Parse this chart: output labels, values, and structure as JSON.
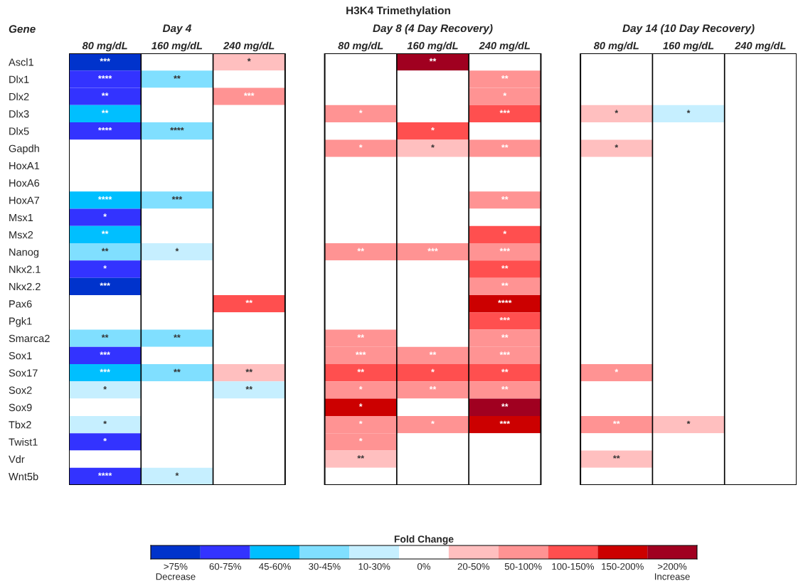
{
  "chart_data": {
    "type": "heatmap",
    "title": "H3K4 Trimethylation",
    "ylabel": "Gene",
    "clabel": "Fold Change",
    "annotations": [
      "Day 4",
      "Day 8 (4 Day Recovery)",
      "Day 14 (10 Day Recovery)"
    ],
    "categories": [
      "80 mg/dL",
      "160 mg/dL",
      "240 mg/dL",
      "80 mg/dL",
      "160 mg/dL",
      "240 mg/dL",
      "80 mg/dL",
      "160 mg/dL",
      "240 mg/dL"
    ],
    "y_categories": [
      "Ascl1",
      "Dlx1",
      "Dlx2",
      "Dlx3",
      "Dlx5",
      "Gapdh",
      "HoxA1",
      "HoxA6",
      "HoxA7",
      "Msx1",
      "Msx2",
      "Nanog",
      "Nkx2.1",
      "Nkx2.2",
      "Pax6",
      "Pgk1",
      "Smarca2",
      "Sox1",
      "Sox17",
      "Sox2",
      "Sox9",
      "Tbx2",
      "Twist1",
      "Vdr",
      "Wnt5b"
    ],
    "colors": [
      "#0033cc",
      "#3333ff",
      "#00bfff",
      "#80dfff",
      "#c6efff",
      "#ffffff",
      "#ffbfbf",
      "#ff9393",
      "#ff4f4f",
      "#cc0000",
      "#a00020"
    ],
    "clim": [
      -5.5,
      5.5
    ],
    "cticks": [
      {
        "value": -5,
        "label": ">75%\nDecrease"
      },
      {
        "value": -4,
        "label": "60-75%"
      },
      {
        "value": -3,
        "label": "45-60%"
      },
      {
        "value": -2,
        "label": "30-45%"
      },
      {
        "value": -1,
        "label": "10-30%"
      },
      {
        "value": 0,
        "label": "0%"
      },
      {
        "value": 1,
        "label": "20-50%"
      },
      {
        "value": 2,
        "label": "50-100%"
      },
      {
        "value": 3,
        "label": "100-150%"
      },
      {
        "value": 4,
        "label": "150-200%"
      },
      {
        "value": 5,
        "label": ">200%\nIncrease"
      }
    ],
    "cells": [
      [
        -5,
        0,
        1,
        0,
        5,
        0,
        0,
        0,
        0
      ],
      [
        -4,
        -2,
        0,
        0,
        0,
        2,
        0,
        0,
        0
      ],
      [
        -4,
        0,
        2,
        0,
        0,
        2,
        0,
        0,
        0
      ],
      [
        -3,
        0,
        0,
        2,
        0,
        3,
        1,
        -1,
        0
      ],
      [
        -4,
        -2,
        0,
        0,
        3,
        0,
        0,
        0,
        0
      ],
      [
        0,
        0,
        0,
        2,
        1,
        2,
        1,
        0,
        0
      ],
      [
        0,
        0,
        0,
        0,
        0,
        0,
        0,
        0,
        0
      ],
      [
        0,
        0,
        0,
        0,
        0,
        0,
        0,
        0,
        0
      ],
      [
        -3,
        -2,
        0,
        0,
        0,
        2,
        0,
        0,
        0
      ],
      [
        -4,
        0,
        0,
        0,
        0,
        0,
        0,
        0,
        0
      ],
      [
        -3,
        0,
        0,
        0,
        0,
        3,
        0,
        0,
        0
      ],
      [
        -2,
        -1,
        0,
        2,
        2,
        2,
        0,
        0,
        0
      ],
      [
        -4,
        0,
        0,
        0,
        0,
        3,
        0,
        0,
        0
      ],
      [
        -5,
        0,
        0,
        0,
        0,
        2,
        0,
        0,
        0
      ],
      [
        0,
        0,
        3,
        0,
        0,
        4,
        0,
        0,
        0
      ],
      [
        0,
        0,
        0,
        0,
        0,
        3,
        0,
        0,
        0
      ],
      [
        -2,
        -2,
        0,
        2,
        0,
        2,
        0,
        0,
        0
      ],
      [
        -4,
        0,
        0,
        2,
        2,
        2,
        0,
        0,
        0
      ],
      [
        -3,
        -2,
        1,
        3,
        3,
        3,
        2,
        0,
        0
      ],
      [
        -1,
        0,
        -1,
        2,
        2,
        2,
        0,
        0,
        0
      ],
      [
        0,
        0,
        0,
        4,
        0,
        5,
        0,
        0,
        0
      ],
      [
        -1,
        0,
        0,
        2,
        2,
        4,
        2,
        1,
        0
      ],
      [
        -4,
        0,
        0,
        2,
        0,
        0,
        0,
        0,
        0
      ],
      [
        0,
        0,
        0,
        1,
        0,
        0,
        1,
        0,
        0
      ],
      [
        -4,
        -1,
        0,
        0,
        0,
        0,
        0,
        0,
        0
      ]
    ],
    "cell_labels": [
      [
        "***",
        null,
        "*",
        null,
        "**",
        null,
        null,
        null,
        null
      ],
      [
        "****",
        "**",
        null,
        null,
        null,
        "**",
        null,
        null,
        null
      ],
      [
        "**",
        null,
        "***",
        null,
        null,
        "*",
        null,
        null,
        null
      ],
      [
        "**",
        null,
        null,
        "*",
        null,
        "***",
        "*",
        "*",
        null
      ],
      [
        "****",
        "****",
        null,
        null,
        "*",
        null,
        null,
        null,
        null
      ],
      [
        null,
        null,
        null,
        "*",
        "*",
        "**",
        "*",
        null,
        null
      ],
      [
        null,
        null,
        null,
        null,
        null,
        null,
        null,
        null,
        null
      ],
      [
        null,
        null,
        null,
        null,
        null,
        null,
        null,
        null,
        null
      ],
      [
        "****",
        "***",
        null,
        null,
        null,
        "**",
        null,
        null,
        null
      ],
      [
        "*",
        null,
        null,
        null,
        null,
        null,
        null,
        null,
        null
      ],
      [
        "**",
        null,
        null,
        null,
        null,
        "*",
        null,
        null,
        null
      ],
      [
        "**",
        "*",
        null,
        "**",
        "***",
        "***",
        null,
        null,
        null
      ],
      [
        "*",
        null,
        null,
        null,
        null,
        "**",
        null,
        null,
        null
      ],
      [
        "***",
        null,
        null,
        null,
        null,
        "**",
        null,
        null,
        null
      ],
      [
        null,
        null,
        "**",
        null,
        null,
        "****",
        null,
        null,
        null
      ],
      [
        null,
        null,
        null,
        null,
        null,
        "***",
        null,
        null,
        null
      ],
      [
        "**",
        "**",
        null,
        "**",
        null,
        "**",
        null,
        null,
        null
      ],
      [
        "***",
        null,
        null,
        "***",
        "**",
        "***",
        null,
        null,
        null
      ],
      [
        "***",
        "**",
        "**",
        "**",
        "*",
        "**",
        "*",
        null,
        null
      ],
      [
        "*",
        null,
        "**",
        "*",
        "**",
        "**",
        null,
        null,
        null
      ],
      [
        null,
        null,
        null,
        "*",
        null,
        "**",
        null,
        null,
        null
      ],
      [
        "*",
        null,
        null,
        "*",
        "*",
        "***",
        "**",
        "*",
        null
      ],
      [
        "*",
        null,
        null,
        "*",
        null,
        null,
        null,
        null,
        null
      ],
      [
        null,
        null,
        null,
        "**",
        null,
        null,
        "**",
        null,
        null
      ],
      [
        "****",
        "*",
        null,
        null,
        null,
        null,
        null,
        null,
        null
      ]
    ]
  }
}
